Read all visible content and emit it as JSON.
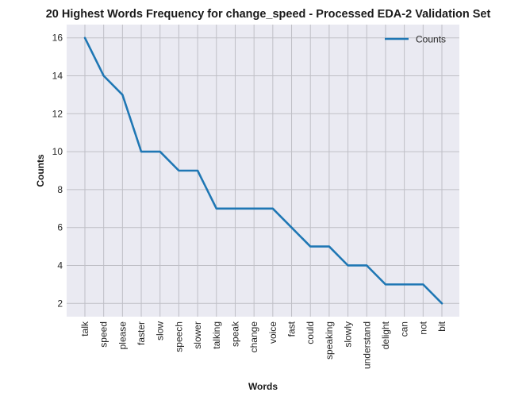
{
  "chart_data": {
    "type": "line",
    "title": "20 Highest Words Frequency for change_speed - Processed EDA-2 Validation Set",
    "xlabel": "Words",
    "ylabel": "Counts",
    "categories": [
      "talk",
      "speed",
      "please",
      "faster",
      "slow",
      "speech",
      "slower",
      "talking",
      "speak",
      "change",
      "voice",
      "fast",
      "could",
      "speaking",
      "slowly",
      "understand",
      "delight",
      "can",
      "not",
      "bit"
    ],
    "series": [
      {
        "name": "Counts",
        "values": [
          16,
          14,
          13,
          10,
          10,
          9,
          9,
          7,
          7,
          7,
          7,
          6,
          5,
          5,
          4,
          4,
          3,
          3,
          3,
          2
        ],
        "color": "#1f77b4"
      }
    ],
    "ylim": [
      1.3,
      16.7
    ],
    "yticks": [
      2,
      4,
      6,
      8,
      10,
      12,
      14,
      16
    ],
    "grid": true,
    "legend_position": "top-right",
    "plot_background": "#eaeaf2",
    "grid_color": "#bfbfc6"
  }
}
